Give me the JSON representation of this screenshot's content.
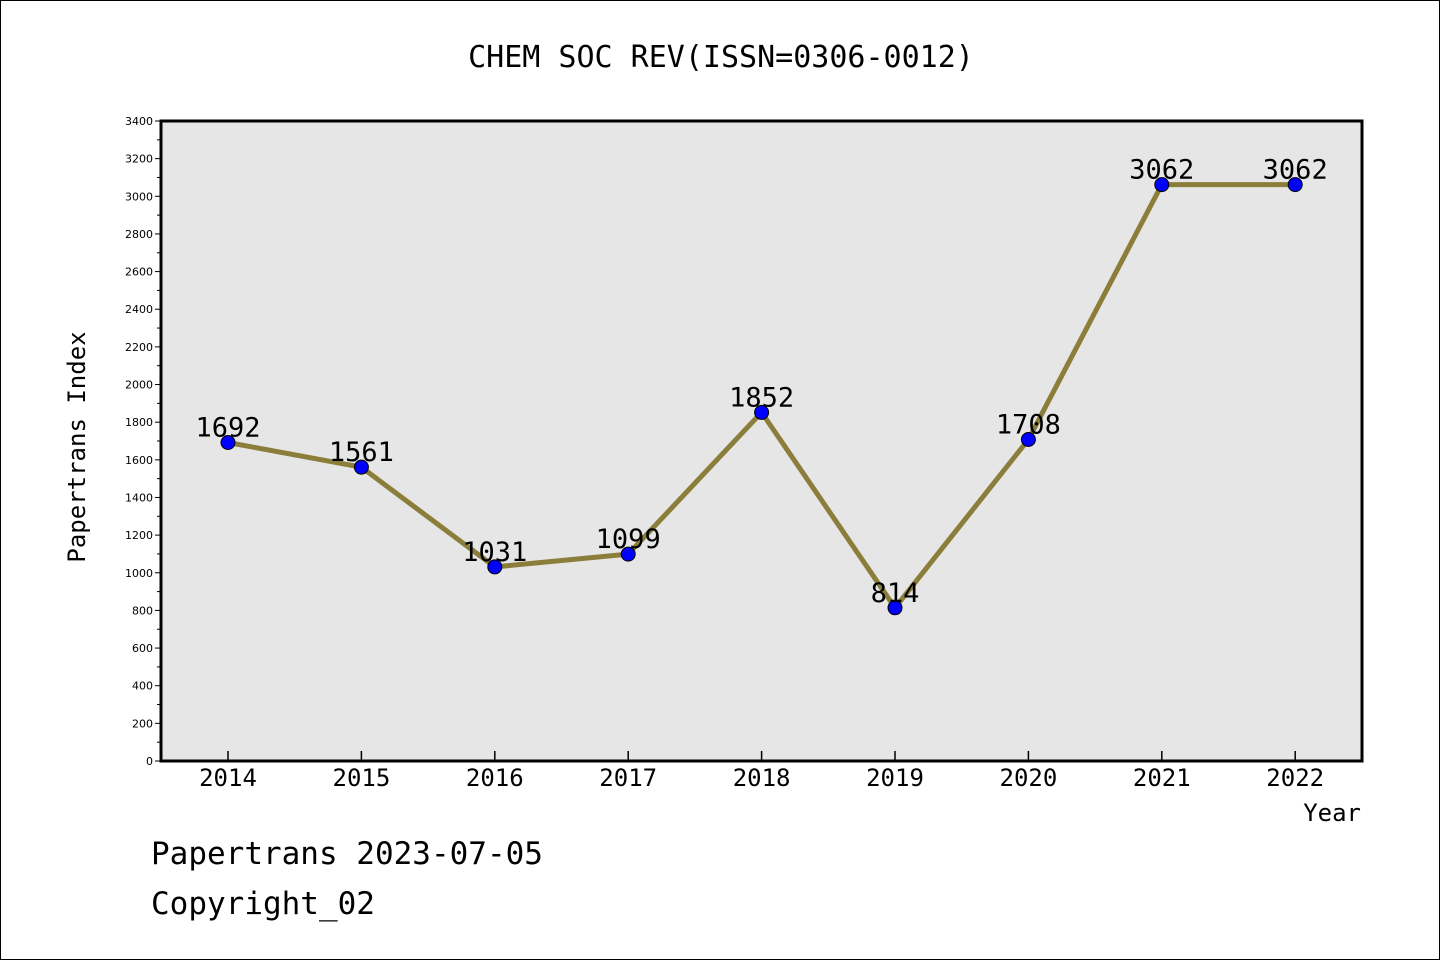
{
  "chart_data": {
    "type": "line",
    "title": "CHEM SOC REV(ISSN=0306-0012)",
    "xlabel": "Year",
    "ylabel": "Papertrans Index",
    "categories": [
      "2014",
      "2015",
      "2016",
      "2017",
      "2018",
      "2019",
      "2020",
      "2021",
      "2022"
    ],
    "series": [
      {
        "values": [
          1692,
          1561,
          1031,
          1099,
          1852,
          814,
          1708,
          3062,
          3062
        ]
      }
    ],
    "ylim": [
      0,
      3400
    ],
    "yticks": [
      "0",
      "200",
      "400",
      "600",
      "800",
      "1000",
      "1200",
      "1400",
      "1600",
      "1800",
      "2000",
      "2200",
      "2400",
      "2600",
      "2800",
      "3000",
      "3200",
      "3400"
    ],
    "data_labels": [
      "1692",
      "1561",
      "1031",
      "1099",
      "1852",
      "814",
      "1708",
      "3062",
      "3062"
    ],
    "grid": false,
    "colors": {
      "line": "#8b7d3a",
      "marker": "#0000ff",
      "plot_bg": "#e6e6e6"
    }
  },
  "footer": {
    "line1": "Papertrans 2023-07-05",
    "line2": "Copyright_02"
  }
}
